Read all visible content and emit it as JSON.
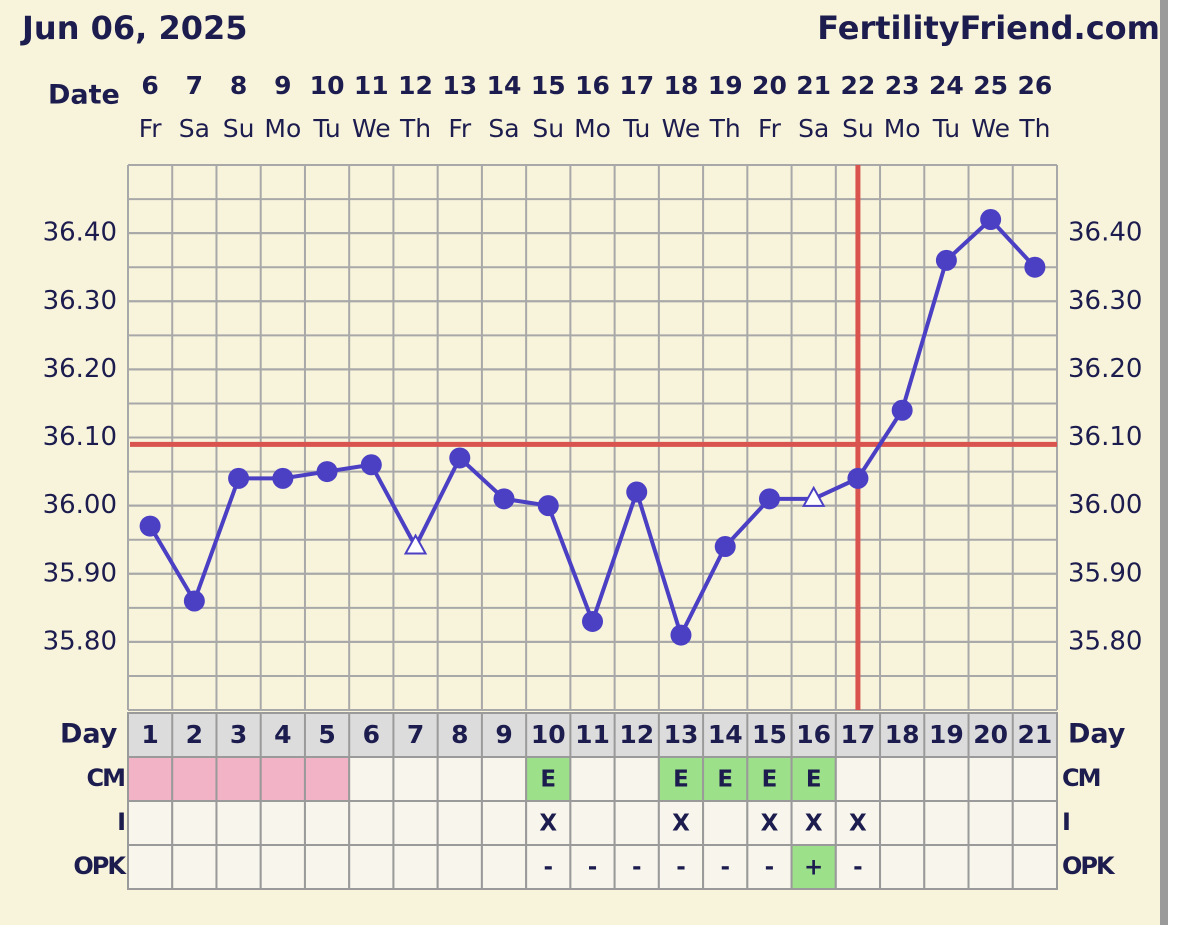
{
  "chart_data": {
    "type": "line",
    "title": "Jun 06, 2025",
    "brand": "FertilityFriend.com",
    "x_label": "Date",
    "categories": [
      "6",
      "7",
      "8",
      "9",
      "10",
      "11",
      "12",
      "13",
      "14",
      "15",
      "16",
      "17",
      "18",
      "19",
      "20",
      "21",
      "22",
      "23",
      "24",
      "25",
      "26"
    ],
    "weekdays": [
      "Fr",
      "Sa",
      "Su",
      "Mo",
      "Tu",
      "We",
      "Th",
      "Fr",
      "Sa",
      "Su",
      "Mo",
      "Tu",
      "We",
      "Th",
      "Fr",
      "Sa",
      "Su",
      "Mo",
      "Tu",
      "We",
      "Th"
    ],
    "values": [
      35.97,
      35.86,
      36.04,
      36.04,
      36.05,
      36.06,
      35.94,
      36.07,
      36.01,
      36.0,
      35.83,
      36.02,
      35.81,
      35.94,
      36.01,
      36.01,
      36.04,
      36.14,
      36.36,
      36.42,
      36.35
    ],
    "markers": [
      "circle",
      "circle",
      "circle",
      "circle",
      "circle",
      "circle",
      "triangle",
      "circle",
      "circle",
      "circle",
      "circle",
      "circle",
      "circle",
      "circle",
      "circle",
      "triangle",
      "circle",
      "circle",
      "circle",
      "circle",
      "circle"
    ],
    "color": "#4b3fc4",
    "ylim": [
      35.7,
      36.5
    ],
    "yticks": [
      {
        "value": 35.8,
        "label": "35.80"
      },
      {
        "value": 35.9,
        "label": "35.90"
      },
      {
        "value": 36.0,
        "label": "36.00"
      },
      {
        "value": 36.1,
        "label": "36.10"
      },
      {
        "value": 36.2,
        "label": "36.20"
      },
      {
        "value": 36.3,
        "label": "36.30"
      },
      {
        "value": 36.4,
        "label": "36.40"
      }
    ],
    "grid": true,
    "grid_step": 0.05,
    "coverline": 36.09,
    "ovulation_day": 17,
    "line_color": "#d9534f",
    "day_label": "Day",
    "days": [
      1,
      2,
      3,
      4,
      5,
      6,
      7,
      8,
      9,
      10,
      11,
      12,
      13,
      14,
      15,
      16,
      17,
      18,
      19,
      20,
      21
    ],
    "period_days": [
      1,
      2,
      3,
      4,
      5
    ],
    "period_color": "#f2b3c6",
    "highlight_color": "#9de08a",
    "table_rows": [
      {
        "label": "CM",
        "cells": [
          null,
          null,
          null,
          null,
          null,
          null,
          null,
          null,
          null,
          "E",
          null,
          null,
          "E",
          "E",
          "E",
          "E",
          null,
          null,
          null,
          null,
          null
        ],
        "highlight": [
          9,
          12,
          13,
          14,
          15
        ]
      },
      {
        "label": "I",
        "cells": [
          null,
          null,
          null,
          null,
          null,
          null,
          null,
          null,
          null,
          "X",
          null,
          null,
          "X",
          null,
          "X",
          "X",
          "X",
          null,
          null,
          null,
          null
        ],
        "highlight": []
      },
      {
        "label": "OPK",
        "cells": [
          null,
          null,
          null,
          null,
          null,
          null,
          null,
          null,
          null,
          "-",
          "-",
          "-",
          "-",
          "-",
          "-",
          "+",
          "-",
          null,
          null,
          null,
          null
        ],
        "highlight": [
          15
        ]
      }
    ]
  }
}
